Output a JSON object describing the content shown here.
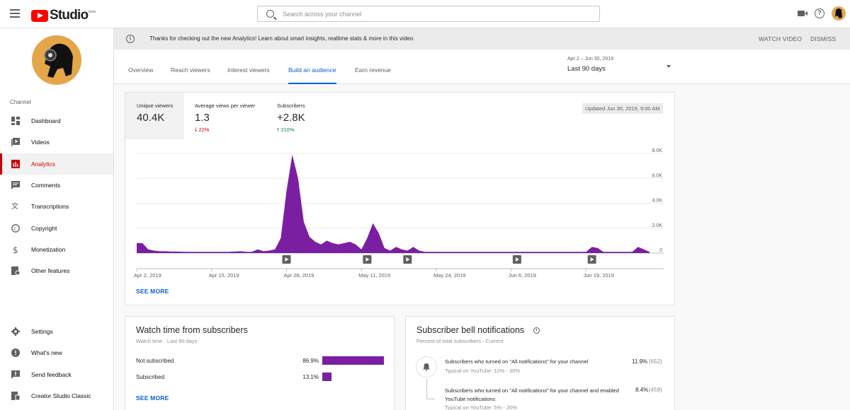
{
  "header": {
    "logo_text": "Studio",
    "logo_beta": "beta",
    "search_placeholder": "Search across your channel"
  },
  "banner": {
    "text": "Thanks for checking out the new Analytics! Learn about smart insights, realtime stats & more in this video.",
    "watch": "WATCH VIDEO",
    "dismiss": "DISMISS"
  },
  "sidebar": {
    "section": "Channel",
    "items": [
      {
        "label": "Dashboard",
        "icon": "dashboard-icon"
      },
      {
        "label": "Videos",
        "icon": "videos-icon"
      },
      {
        "label": "Analytics",
        "icon": "analytics-icon"
      },
      {
        "label": "Comments",
        "icon": "comments-icon"
      },
      {
        "label": "Transcriptions",
        "icon": "transcriptions-icon"
      },
      {
        "label": "Copyright",
        "icon": "copyright-icon"
      },
      {
        "label": "Monetization",
        "icon": "monetization-icon"
      },
      {
        "label": "Other features",
        "icon": "other-features-icon"
      }
    ],
    "bottom": [
      {
        "label": "Settings",
        "icon": "gear-icon"
      },
      {
        "label": "What's new",
        "icon": "whats-new-icon"
      },
      {
        "label": "Send feedback",
        "icon": "feedback-icon"
      },
      {
        "label": "Creator Studio Classic",
        "icon": "classic-icon"
      }
    ],
    "active_index": 2
  },
  "tabs": [
    "Overview",
    "Reach viewers",
    "Interest viewers",
    "Build an audience",
    "Earn revenue"
  ],
  "active_tab": 3,
  "date_range": {
    "period": "Apr 2 – Jun 30, 2019",
    "label": "Last 90 days"
  },
  "metrics": [
    {
      "label": "Unique viewers",
      "value": "40.4K",
      "delta": ""
    },
    {
      "label": "Average views per viewer",
      "value": "1.3",
      "delta": "22%",
      "direction": "down"
    },
    {
      "label": "Subscribers",
      "value": "+2.8K",
      "delta": "210%",
      "direction": "up"
    }
  ],
  "updated": "Updated Jun 30, 2019, 9:00 AM",
  "see_more": "SEE MORE",
  "colors": {
    "series": "#7b1fa2",
    "accent": "#065fd4",
    "brand": "#ff0000",
    "up": "#0b8043",
    "down": "#cc0000"
  },
  "chart_data": {
    "type": "area",
    "y_ticks": [
      "8.0K",
      "6.0K",
      "4.0K",
      "2.0K",
      "0"
    ],
    "ylim": [
      0,
      8000
    ],
    "x_tick_labels": [
      "Apr 2, 2019",
      "Apr 15, 2019",
      "Apr 28, 2019",
      "May 11, 2019",
      "May 24, 2019",
      "Jun 6, 2019",
      "Jun 19, 2019"
    ],
    "xlim": [
      "2019-04-02",
      "2019-06-30"
    ],
    "video_markers": [
      "2019-04-28",
      "2019-05-12",
      "2019-05-19",
      "2019-06-07",
      "2019-06-20"
    ],
    "series": [
      {
        "x": [
          "2019-04-02",
          "2019-04-03",
          "2019-04-04",
          "2019-04-05",
          "2019-04-06",
          "2019-04-07",
          "2019-04-08",
          "2019-04-09",
          "2019-04-10",
          "2019-04-11",
          "2019-04-12",
          "2019-04-13",
          "2019-04-14",
          "2019-04-15",
          "2019-04-16",
          "2019-04-17",
          "2019-04-18",
          "2019-04-19",
          "2019-04-20",
          "2019-04-21",
          "2019-04-22",
          "2019-04-23",
          "2019-04-24",
          "2019-04-25",
          "2019-04-26",
          "2019-04-27",
          "2019-04-28",
          "2019-04-29",
          "2019-04-30",
          "2019-05-01",
          "2019-05-02",
          "2019-05-03",
          "2019-05-04",
          "2019-05-05",
          "2019-05-06",
          "2019-05-07",
          "2019-05-08",
          "2019-05-09",
          "2019-05-10",
          "2019-05-11",
          "2019-05-12",
          "2019-05-13",
          "2019-05-14",
          "2019-05-15",
          "2019-05-16",
          "2019-05-17",
          "2019-05-18",
          "2019-05-19",
          "2019-05-20",
          "2019-05-21",
          "2019-05-22",
          "2019-05-23",
          "2019-05-24",
          "2019-05-25",
          "2019-05-26",
          "2019-05-27",
          "2019-05-28",
          "2019-05-29",
          "2019-05-30",
          "2019-05-31",
          "2019-06-01",
          "2019-06-02",
          "2019-06-03",
          "2019-06-04",
          "2019-06-05",
          "2019-06-06",
          "2019-06-07",
          "2019-06-08",
          "2019-06-09",
          "2019-06-10",
          "2019-06-11",
          "2019-06-12",
          "2019-06-13",
          "2019-06-14",
          "2019-06-15",
          "2019-06-16",
          "2019-06-17",
          "2019-06-18",
          "2019-06-19",
          "2019-06-20",
          "2019-06-21",
          "2019-06-22",
          "2019-06-23",
          "2019-06-24",
          "2019-06-25",
          "2019-06-26",
          "2019-06-27",
          "2019-06-28",
          "2019-06-29",
          "2019-06-30"
        ],
        "values": [
          800,
          800,
          300,
          200,
          150,
          150,
          120,
          120,
          110,
          100,
          100,
          100,
          100,
          100,
          100,
          100,
          100,
          120,
          150,
          100,
          100,
          300,
          150,
          200,
          300,
          1200,
          5000,
          7900,
          6000,
          2500,
          1300,
          900,
          700,
          1000,
          800,
          700,
          800,
          900,
          700,
          300,
          1200,
          2400,
          1600,
          400,
          200,
          500,
          300,
          200,
          500,
          200,
          100,
          100,
          100,
          100,
          100,
          100,
          100,
          100,
          100,
          100,
          100,
          100,
          100,
          100,
          100,
          100,
          100,
          100,
          100,
          100,
          100,
          100,
          100,
          100,
          100,
          100,
          100,
          100,
          100,
          500,
          400,
          100,
          100,
          100,
          100,
          100,
          100,
          500,
          300,
          100
        ]
      }
    ]
  },
  "watch_time": {
    "title": "Watch time from subscribers",
    "subtitle": "Watch time · Last 90 days",
    "rows": [
      {
        "label": "Not subscribed",
        "pct": "86.9%",
        "value": 0.869
      },
      {
        "label": "Subscribed",
        "pct": "13.1%",
        "value": 0.131
      }
    ]
  },
  "bell": {
    "title": "Subscriber bell notifications",
    "subtitle": "Percent of total subscribers · Current",
    "rows": [
      {
        "text": "Subscribers who turned on \"All notifications\" for your channel",
        "typical": "Typical on YouTube: 10% - 30%",
        "pct": "11.9%",
        "count": "(652)"
      },
      {
        "text": "Subscribers who turned on \"All notifications\" for your channel and enabled YouTube notifications",
        "typical": "Typical on YouTube: 5% - 20%",
        "pct": "8.4%",
        "count": "(459)"
      }
    ]
  }
}
